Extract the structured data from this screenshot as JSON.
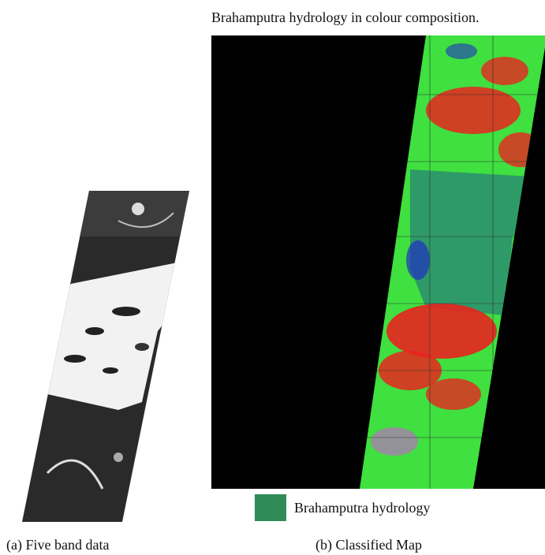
{
  "figure": {
    "title": "Brahamputra hydrology in colour composition.",
    "legend": "Brahamputra hydrology",
    "captions": [
      "(a) Five band data",
      "(b) Classified Map"
    ]
  }
}
